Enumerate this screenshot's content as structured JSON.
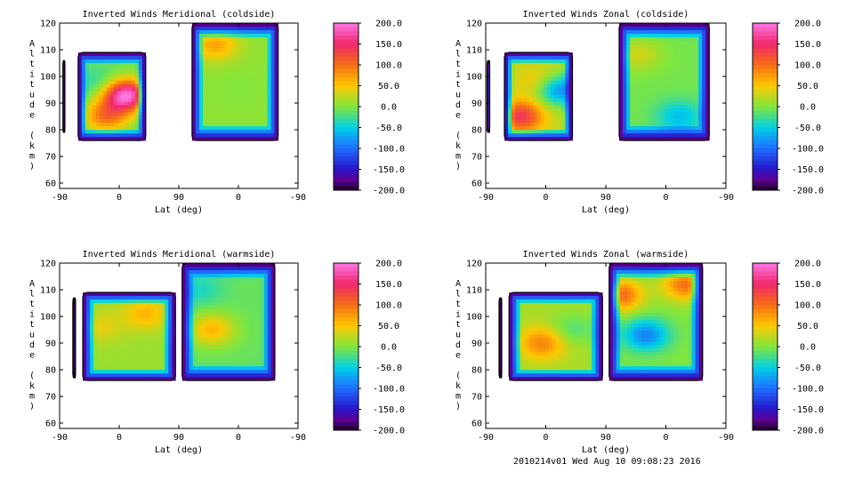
{
  "footer": {
    "stamp": "2010214v01 Wed Aug 10 09:08:23 2016"
  },
  "chart_data": [
    {
      "type": "heatmap",
      "title": "Inverted Winds Meridional (coldside)",
      "xlabel": "Lat (deg)",
      "ylabel": "Altitude (km)",
      "xticks": [
        "-90",
        "0",
        "90",
        "0",
        "-90"
      ],
      "yticks": [
        "60",
        "70",
        "80",
        "90",
        "100",
        "110",
        "120"
      ],
      "ylim": [
        58,
        120
      ],
      "colorbar": {
        "range": [
          -200,
          200
        ],
        "ticks": [
          "200.0",
          "150.0",
          "100.0",
          "50.0",
          "0.0",
          "-50.0",
          "-100.0",
          "-150.0",
          "-200.0"
        ]
      },
      "regions": [
        {
          "x": [
            -62,
            40
          ],
          "y": [
            76,
            109
          ],
          "base": -10,
          "blobs": [
            {
              "x": -20,
              "y": 85,
              "v": 95
            },
            {
              "x": 10,
              "y": 93,
              "v": 200
            },
            {
              "x": -30,
              "y": 97,
              "v": -40
            }
          ]
        },
        {
          "x": 70,
          "y": [
            76,
            120
          ],
          "base": 5,
          "x_end": -60,
          "blobs": [
            {
              "x": 35,
              "y": 112,
              "v": 70
            },
            {
              "x": 0,
              "y": 95,
              "v": 0
            }
          ]
        },
        {
          "x": [
            -85,
            -82
          ],
          "y": [
            79,
            106
          ],
          "base": -180,
          "blobs": []
        }
      ]
    },
    {
      "type": "heatmap",
      "title": "Inverted Winds Zonal (coldside)",
      "xlabel": "Lat (deg)",
      "ylabel": "Altitude (km)",
      "xticks": [
        "-90",
        "0",
        "90",
        "0",
        "-90"
      ],
      "yticks": [
        "60",
        "70",
        "80",
        "90",
        "100",
        "110",
        "120"
      ],
      "ylim": [
        58,
        120
      ],
      "colorbar": {
        "range": [
          -200,
          200
        ],
        "ticks": [
          "200.0",
          "150.0",
          "100.0",
          "50.0",
          "0.0",
          "-50.0",
          "-100.0",
          "-150.0",
          "-200.0"
        ]
      },
      "regions": [
        {
          "x": [
            -62,
            40
          ],
          "y": [
            76,
            109
          ],
          "base": 20,
          "blobs": [
            {
              "x": -38,
              "y": 85,
              "v": 140
            },
            {
              "x": 20,
              "y": 95,
              "v": -90
            },
            {
              "x": -10,
              "y": 98,
              "v": 60
            }
          ]
        },
        {
          "x": 70,
          "y": [
            76,
            120
          ],
          "base": -5,
          "x_end": -65,
          "blobs": [
            {
              "x": 40,
              "y": 108,
              "v": 30
            },
            {
              "x": -20,
              "y": 85,
              "v": -60
            }
          ]
        },
        {
          "x": [
            -88,
            -84
          ],
          "y": [
            79,
            106
          ],
          "base": -160,
          "blobs": []
        }
      ]
    },
    {
      "type": "heatmap",
      "title": "Inverted Winds Meridional (warmside)",
      "xlabel": "Lat (deg)",
      "ylabel": "Altitude (km)",
      "xticks": [
        "-90",
        "0",
        "90",
        "0",
        "-90"
      ],
      "yticks": [
        "60",
        "70",
        "80",
        "90",
        "100",
        "110",
        "120"
      ],
      "ylim": [
        58,
        120
      ],
      "colorbar": {
        "range": [
          -200,
          200
        ],
        "ticks": [
          "200.0",
          "150.0",
          "100.0",
          "50.0",
          "0.0",
          "-50.0",
          "-100.0",
          "-150.0",
          "-200.0"
        ]
      },
      "regions": [
        {
          "x": [
            -55,
            85
          ],
          "y": [
            76,
            109
          ],
          "base": 10,
          "blobs": [
            {
              "x": 40,
              "y": 101,
              "v": 60
            },
            {
              "x": -30,
              "y": 96,
              "v": 40
            }
          ]
        },
        {
          "x": 85,
          "y": [
            76,
            120
          ],
          "base": -10,
          "x_end": -55,
          "blobs": [
            {
              "x": 40,
              "y": 95,
              "v": 60
            },
            {
              "x": 60,
              "y": 110,
              "v": -40
            }
          ]
        },
        {
          "x": [
            -70,
            -66
          ],
          "y": [
            77,
            107
          ],
          "base": -190,
          "blobs": []
        }
      ]
    },
    {
      "type": "heatmap",
      "title": "Inverted Winds Zonal (warmside)",
      "xlabel": "Lat (deg)",
      "ylabel": "Altitude (km)",
      "xticks": [
        "-90",
        "0",
        "90",
        "0",
        "-90"
      ],
      "yticks": [
        "60",
        "70",
        "80",
        "90",
        "100",
        "110",
        "120"
      ],
      "ylim": [
        58,
        120
      ],
      "colorbar": {
        "range": [
          -200,
          200
        ],
        "ticks": [
          "200.0",
          "150.0",
          "100.0",
          "50.0",
          "0.0",
          "-50.0",
          "-100.0",
          "-150.0",
          "-200.0"
        ]
      },
      "regions": [
        {
          "x": [
            -55,
            85
          ],
          "y": [
            76,
            109
          ],
          "base": 15,
          "blobs": [
            {
              "x": -5,
              "y": 90,
              "v": 90
            },
            {
              "x": 40,
              "y": 95,
              "v": -20
            }
          ]
        },
        {
          "x": 85,
          "y": [
            76,
            120
          ],
          "base": 0,
          "x_end": -55,
          "blobs": [
            {
              "x": 70,
              "y": 108,
              "v": 110
            },
            {
              "x": 30,
              "y": 93,
              "v": -90
            },
            {
              "x": -30,
              "y": 112,
              "v": 100
            }
          ]
        },
        {
          "x": [
            -70,
            -66
          ],
          "y": [
            77,
            107
          ],
          "base": -190,
          "blobs": []
        }
      ]
    }
  ]
}
